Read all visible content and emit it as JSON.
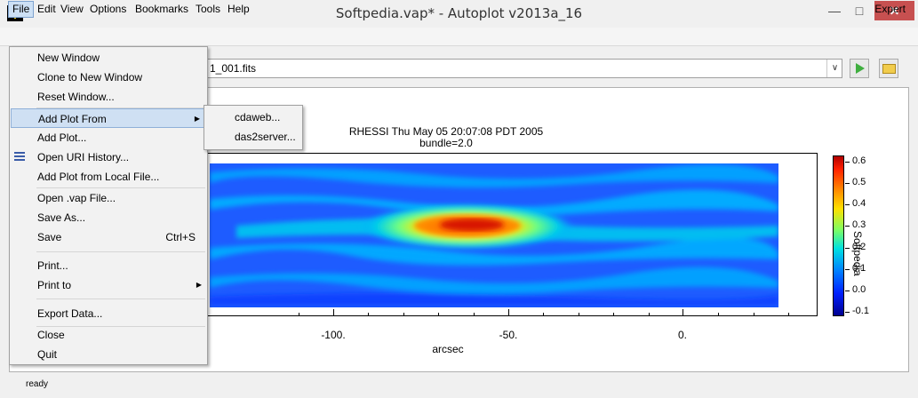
{
  "window": {
    "title": "Softpedia.vap* - Autoplot v2013a_16",
    "minimize": "—",
    "maximize": "□",
    "close": "✕"
  },
  "menubar": {
    "items": [
      "File",
      "Edit",
      "View",
      "Options",
      "Bookmarks",
      "Tools",
      "Help"
    ],
    "expert": "Expert"
  },
  "toolbar": {
    "uri_value": "1_001.fits",
    "combo_arrow": "∨"
  },
  "file_menu": {
    "items": [
      {
        "label": "New Window"
      },
      {
        "label": "Clone to New Window"
      },
      {
        "label": "Reset Window..."
      },
      {
        "label": "Add Plot From",
        "submenu": true,
        "highlighted": true
      },
      {
        "label": "Add Plot..."
      },
      {
        "label": "Open URI History...",
        "icon": "history-icon"
      },
      {
        "label": "Add Plot from Local File..."
      },
      {
        "label": "Open .vap File..."
      },
      {
        "label": "Save As..."
      },
      {
        "label": "Save",
        "shortcut": "Ctrl+S"
      },
      {
        "label": "Print..."
      },
      {
        "label": "Print to",
        "submenu": true
      },
      {
        "label": "Export Data..."
      },
      {
        "label": "Close"
      },
      {
        "label": "Quit"
      }
    ],
    "submenu_arrow": "▶"
  },
  "add_plot_from_submenu": {
    "items": [
      "cdaweb...",
      "das2server..."
    ]
  },
  "plot": {
    "title_line1": "RHESSI Thu May 05 20:07:08 PDT 2005",
    "title_line2": "bundle=2.0",
    "x_axis_title": "arcsec",
    "x_tick_labels": [
      "-100.",
      "-50.",
      "0."
    ],
    "colorbar_title": "Softpedia",
    "colorbar_labels": [
      "0.6",
      "0.5",
      "0.4",
      "0.3",
      "0.2",
      "0.1",
      "0.0",
      "-0.1"
    ],
    "colorbar_range": [
      -0.1,
      0.6
    ]
  },
  "status": {
    "text": "ready"
  },
  "colors": {
    "close_button": "#c75050",
    "menu_highlight": "#cfe0f3",
    "go_button": "#3fae3f"
  }
}
